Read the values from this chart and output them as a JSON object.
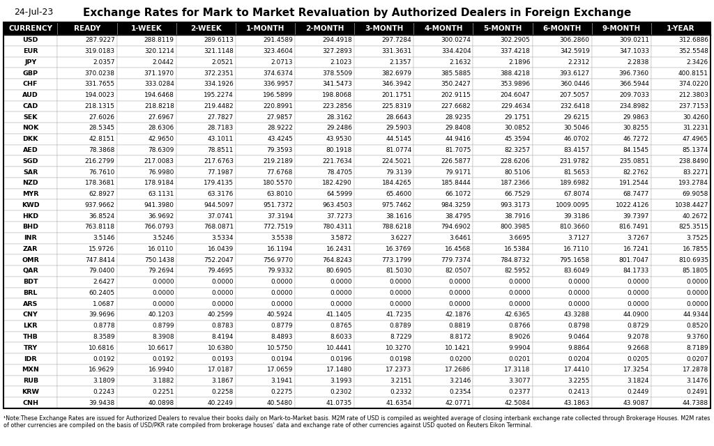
{
  "title": "Exchange Rates for Mark to Market Revaluation by Authorized Dealers in Foreign Exchange",
  "date": "24-Jul-23",
  "columns": [
    "CURRENCY",
    "READY",
    "1-WEEK",
    "2-WEEK",
    "1-MONTH",
    "2-MONTH",
    "3-MONTH",
    "4-MONTH",
    "5-MONTH",
    "6-MONTH",
    "9-MONTH",
    "1-YEAR"
  ],
  "rows": [
    [
      "USD",
      "287.9227",
      "288.8119",
      "289.6113",
      "291.4589",
      "294.4918",
      "297.7284",
      "300.0274",
      "302.2905",
      "306.2860",
      "309.0211",
      "312.6886"
    ],
    [
      "EUR",
      "319.0183",
      "320.1214",
      "321.1148",
      "323.4604",
      "327.2893",
      "331.3631",
      "334.4204",
      "337.4218",
      "342.5919",
      "347.1033",
      "352.5548"
    ],
    [
      "JPY",
      "2.0357",
      "2.0442",
      "2.0521",
      "2.0713",
      "2.1023",
      "2.1357",
      "2.1632",
      "2.1896",
      "2.2312",
      "2.2838",
      "2.3426"
    ],
    [
      "GBP",
      "370.0238",
      "371.1970",
      "372.2351",
      "374.6374",
      "378.5509",
      "382.6979",
      "385.5885",
      "388.4218",
      "393.6127",
      "396.7360",
      "400.8151"
    ],
    [
      "CHF",
      "331.7655",
      "333.0284",
      "334.1926",
      "336.9957",
      "341.5473",
      "346.3942",
      "350.2427",
      "353.9896",
      "360.0446",
      "366.5944",
      "374.0220"
    ],
    [
      "AUD",
      "194.0023",
      "194.6468",
      "195.2274",
      "196.5899",
      "198.8068",
      "201.1751",
      "202.9115",
      "204.6047",
      "207.5057",
      "209.7033",
      "212.3803"
    ],
    [
      "CAD",
      "218.1315",
      "218.8218",
      "219.4482",
      "220.8991",
      "223.2856",
      "225.8319",
      "227.6682",
      "229.4634",
      "232.6418",
      "234.8982",
      "237.7153"
    ],
    [
      "SEK",
      "27.6026",
      "27.6967",
      "27.7827",
      "27.9857",
      "28.3162",
      "28.6643",
      "28.9235",
      "29.1751",
      "29.6215",
      "29.9863",
      "30.4260"
    ],
    [
      "NOK",
      "28.5345",
      "28.6306",
      "28.7183",
      "28.9222",
      "29.2486",
      "29.5903",
      "29.8408",
      "30.0852",
      "30.5046",
      "30.8255",
      "31.2231"
    ],
    [
      "DKK",
      "42.8151",
      "42.9650",
      "43.1011",
      "43.4245",
      "43.9530",
      "44.5145",
      "44.9416",
      "45.3594",
      "46.0702",
      "46.7272",
      "47.4965"
    ],
    [
      "AED",
      "78.3868",
      "78.6309",
      "78.8511",
      "79.3593",
      "80.1918",
      "81.0774",
      "81.7075",
      "82.3257",
      "83.4157",
      "84.1545",
      "85.1374"
    ],
    [
      "SGD",
      "216.2799",
      "217.0083",
      "217.6763",
      "219.2189",
      "221.7634",
      "224.5021",
      "226.5877",
      "228.6206",
      "231.9782",
      "235.0851",
      "238.8490"
    ],
    [
      "SAR",
      "76.7610",
      "76.9980",
      "77.1987",
      "77.6768",
      "78.4705",
      "79.3139",
      "79.9171",
      "80.5106",
      "81.5653",
      "82.2762",
      "83.2271"
    ],
    [
      "NZD",
      "178.3681",
      "178.9184",
      "179.4135",
      "180.5570",
      "182.4290",
      "184.4265",
      "185.8444",
      "187.2366",
      "189.6982",
      "191.2544",
      "193.2784"
    ],
    [
      "MYR",
      "62.8927",
      "63.1131",
      "63.3176",
      "63.8010",
      "64.5999",
      "65.4600",
      "66.1072",
      "66.7529",
      "67.8074",
      "68.7477",
      "69.9058"
    ],
    [
      "KWD",
      "937.9662",
      "941.3980",
      "944.5097",
      "951.7372",
      "963.4503",
      "975.7462",
      "984.3259",
      "993.3173",
      "1009.0095",
      "1022.4126",
      "1038.4427"
    ],
    [
      "HKD",
      "36.8524",
      "36.9692",
      "37.0741",
      "37.3194",
      "37.7273",
      "38.1616",
      "38.4795",
      "38.7916",
      "39.3186",
      "39.7397",
      "40.2672"
    ],
    [
      "BHD",
      "763.8118",
      "766.0793",
      "768.0871",
      "772.7519",
      "780.4311",
      "788.6218",
      "794.6902",
      "800.3985",
      "810.3660",
      "816.7491",
      "825.3515"
    ],
    [
      "INR",
      "3.5146",
      "3.5246",
      "3.5334",
      "3.5538",
      "3.5872",
      "3.6227",
      "3.6461",
      "3.6695",
      "3.7127",
      "3.7267",
      "3.7525"
    ],
    [
      "ZAR",
      "15.9726",
      "16.0110",
      "16.0439",
      "16.1194",
      "16.2431",
      "16.3769",
      "16.4568",
      "16.5384",
      "16.7110",
      "16.7241",
      "16.7855"
    ],
    [
      "OMR",
      "747.8414",
      "750.1438",
      "752.2047",
      "756.9770",
      "764.8243",
      "773.1799",
      "779.7374",
      "784.8732",
      "795.1658",
      "801.7047",
      "810.6935"
    ],
    [
      "QAR",
      "79.0400",
      "79.2694",
      "79.4695",
      "79.9332",
      "80.6905",
      "81.5030",
      "82.0507",
      "82.5952",
      "83.6049",
      "84.1733",
      "85.1805"
    ],
    [
      "BDT",
      "2.6427",
      "0.0000",
      "0.0000",
      "0.0000",
      "0.0000",
      "0.0000",
      "0.0000",
      "0.0000",
      "0.0000",
      "0.0000",
      "0.0000"
    ],
    [
      "BRL",
      "60.2405",
      "0.0000",
      "0.0000",
      "0.0000",
      "0.0000",
      "0.0000",
      "0.0000",
      "0.0000",
      "0.0000",
      "0.0000",
      "0.0000"
    ],
    [
      "ARS",
      "1.0687",
      "0.0000",
      "0.0000",
      "0.0000",
      "0.0000",
      "0.0000",
      "0.0000",
      "0.0000",
      "0.0000",
      "0.0000",
      "0.0000"
    ],
    [
      "CNY",
      "39.9696",
      "40.1203",
      "40.2599",
      "40.5924",
      "41.1405",
      "41.7235",
      "42.1876",
      "42.6365",
      "43.3288",
      "44.0900",
      "44.9344"
    ],
    [
      "LKR",
      "0.8778",
      "0.8799",
      "0.8783",
      "0.8779",
      "0.8765",
      "0.8789",
      "0.8819",
      "0.8766",
      "0.8798",
      "0.8729",
      "0.8520"
    ],
    [
      "THB",
      "8.3589",
      "8.3908",
      "8.4194",
      "8.4893",
      "8.6033",
      "8.7229",
      "8.8172",
      "8.9026",
      "9.0464",
      "9.2078",
      "9.3760"
    ],
    [
      "TRY",
      "10.6816",
      "10.6617",
      "10.6380",
      "10.5750",
      "10.4441",
      "10.3270",
      "10.1421",
      "9.9904",
      "9.8864",
      "9.2668",
      "8.7189"
    ],
    [
      "IDR",
      "0.0192",
      "0.0192",
      "0.0193",
      "0.0194",
      "0.0196",
      "0.0198",
      "0.0200",
      "0.0201",
      "0.0204",
      "0.0205",
      "0.0207"
    ],
    [
      "MXN",
      "16.9629",
      "16.9940",
      "17.0187",
      "17.0659",
      "17.1480",
      "17.2373",
      "17.2686",
      "17.3118",
      "17.4410",
      "17.3254",
      "17.2878"
    ],
    [
      "RUB",
      "3.1809",
      "3.1882",
      "3.1867",
      "3.1941",
      "3.1993",
      "3.2151",
      "3.2146",
      "3.3077",
      "3.2255",
      "3.1824",
      "3.1476"
    ],
    [
      "KRW",
      "0.2243",
      "0.2251",
      "0.2258",
      "0.2275",
      "0.2302",
      "0.2332",
      "0.2354",
      "0.2377",
      "0.2413",
      "0.2449",
      "0.2491"
    ],
    [
      "CNH",
      "39.9438",
      "40.0898",
      "40.2249",
      "40.5480",
      "41.0735",
      "41.6354",
      "42.0771",
      "42.5084",
      "43.1863",
      "43.9087",
      "44.7388"
    ]
  ],
  "note": "¹Note:These Exchange Rates are issued for Authorized Dealers to revalue their books daily on Mark-to-Market basis. M2M rate of USD is compiled as weighted average of closing interbank exchange rate collected through Brokerage Houses. M2M rates of other currencies are compiled on the basis of USD/PKR rate compiled from brokerage houses’ data and exchange rate of other currencies against USD quoted on Reuters Eikon Terminal.",
  "header_bg": "#000000",
  "header_text": "#ffffff",
  "row_bg": "#ffffff",
  "border_color": "#888888",
  "outer_border_color": "#000000",
  "title_color": "#000000",
  "date_color": "#000000",
  "text_color": "#000000",
  "title_fontsize": 11.0,
  "date_fontsize": 9.0,
  "header_fontsize": 7.5,
  "cell_fontsize": 6.8,
  "note_fontsize": 5.8
}
